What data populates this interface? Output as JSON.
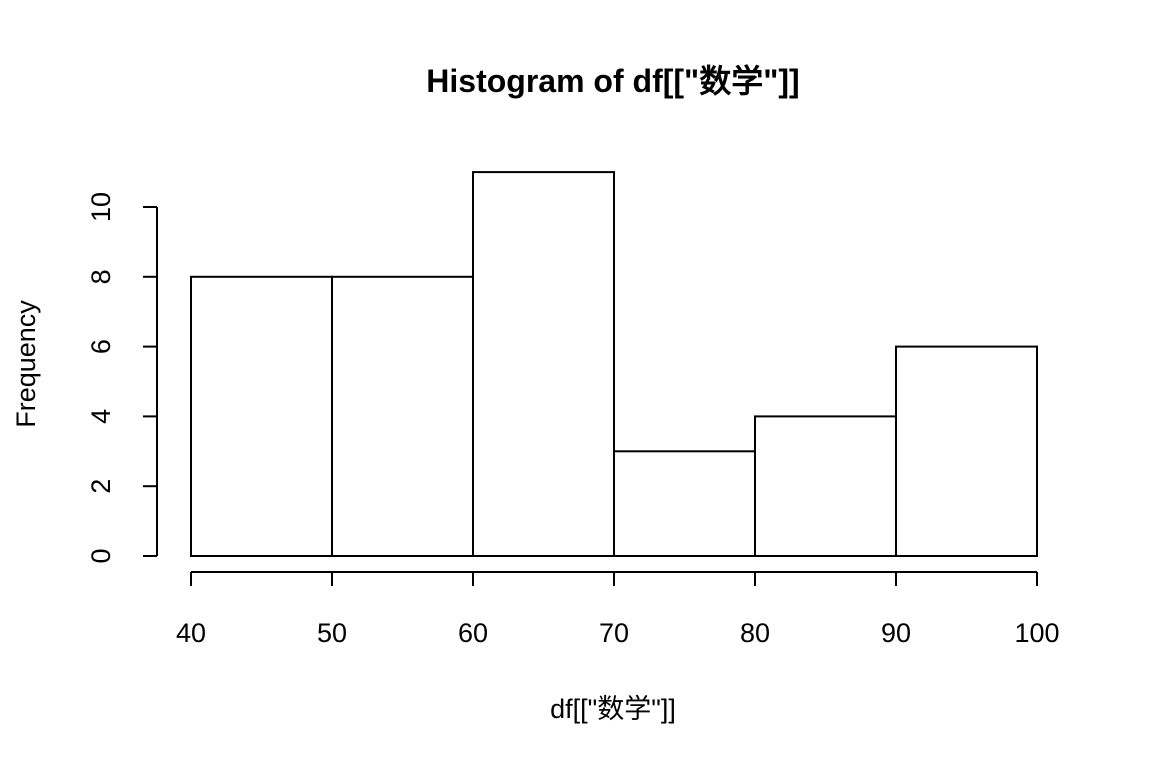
{
  "chart_data": {
    "type": "bar",
    "title": "Histogram of df[[\"数学\"]]",
    "xlabel": "df[[\"数学\"]]",
    "ylabel": "Frequency",
    "bins": [
      {
        "start": 40,
        "end": 50,
        "count": 8
      },
      {
        "start": 50,
        "end": 60,
        "count": 8
      },
      {
        "start": 60,
        "end": 70,
        "count": 11
      },
      {
        "start": 70,
        "end": 80,
        "count": 3
      },
      {
        "start": 80,
        "end": 90,
        "count": 4
      },
      {
        "start": 90,
        "end": 100,
        "count": 6
      }
    ],
    "x_ticks": [
      40,
      50,
      60,
      70,
      80,
      90,
      100
    ],
    "y_ticks": [
      0,
      2,
      4,
      6,
      8,
      10
    ],
    "xlim": [
      40,
      100
    ],
    "ylim": [
      0,
      11
    ],
    "grid": false,
    "legend": "none",
    "colors": {
      "bar_fill": "#ffffff",
      "bar_stroke": "#000000"
    }
  }
}
